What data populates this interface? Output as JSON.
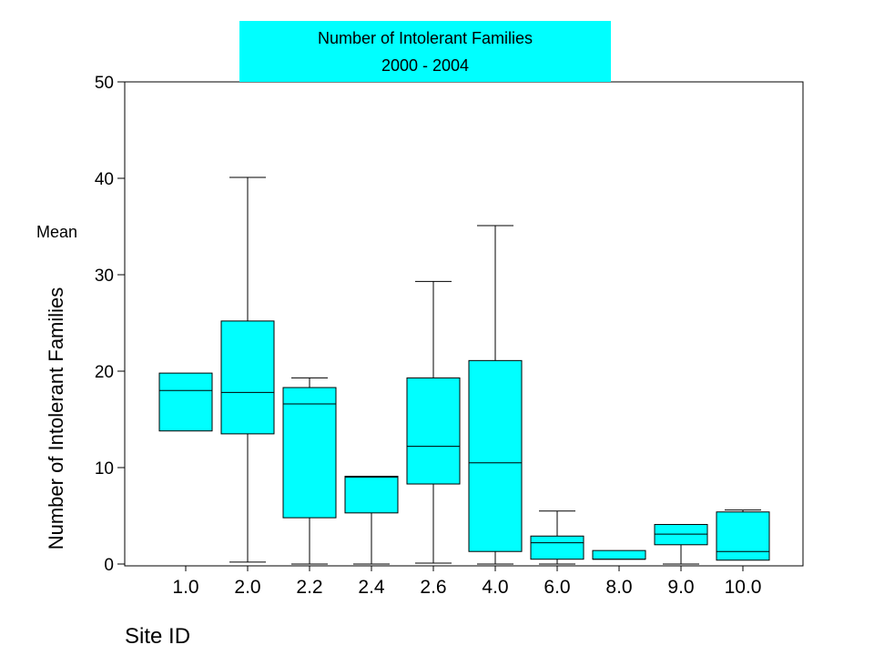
{
  "chart_data": {
    "type": "boxplot",
    "title": [
      "Number of Intolerant Families",
      "2000 - 2004"
    ],
    "ylabel_top": "Mean",
    "ylabel": "Number of Intolerant Families",
    "xlabel": "Site ID",
    "ylim": [
      0,
      50
    ],
    "yticks": [
      0,
      10,
      20,
      30,
      40,
      50
    ],
    "categories": [
      "1.0",
      "2.0",
      "2.2",
      "2.4",
      "2.6",
      "4.0",
      "6.0",
      "8.0",
      "9.0",
      "10.0"
    ],
    "boxes": [
      {
        "category": "1.0",
        "min": 13.8,
        "q1": 13.8,
        "median": 18.0,
        "q3": 19.8,
        "max": 19.8
      },
      {
        "category": "2.0",
        "min": 0.2,
        "q1": 13.5,
        "median": 17.8,
        "q3": 25.2,
        "max": 40.1
      },
      {
        "category": "2.2",
        "min": 0.0,
        "q1": 4.8,
        "median": 16.6,
        "q3": 18.3,
        "max": 19.3
      },
      {
        "category": "2.4",
        "min": 0.0,
        "q1": 5.3,
        "median": 9.0,
        "q3": 9.1,
        "max": 9.1
      },
      {
        "category": "2.6",
        "min": 0.1,
        "q1": 8.3,
        "median": 12.2,
        "q3": 19.3,
        "max": 29.3
      },
      {
        "category": "4.0",
        "min": 0.0,
        "q1": 1.3,
        "median": 10.5,
        "q3": 21.1,
        "max": 35.1
      },
      {
        "category": "6.0",
        "min": 0.0,
        "q1": 0.5,
        "median": 2.2,
        "q3": 2.9,
        "max": 5.5
      },
      {
        "category": "8.0",
        "min": 0.5,
        "q1": 0.5,
        "median": 0.5,
        "q3": 1.4,
        "max": 1.4
      },
      {
        "category": "9.0",
        "min": 0.0,
        "q1": 2.0,
        "median": 3.1,
        "q3": 4.1,
        "max": 4.1
      },
      {
        "category": "10.0",
        "min": 0.4,
        "q1": 0.4,
        "median": 1.3,
        "q3": 5.4,
        "max": 5.6
      }
    ],
    "box_color": "#00ffff",
    "title_bg": "#00ffff",
    "grid": false
  }
}
